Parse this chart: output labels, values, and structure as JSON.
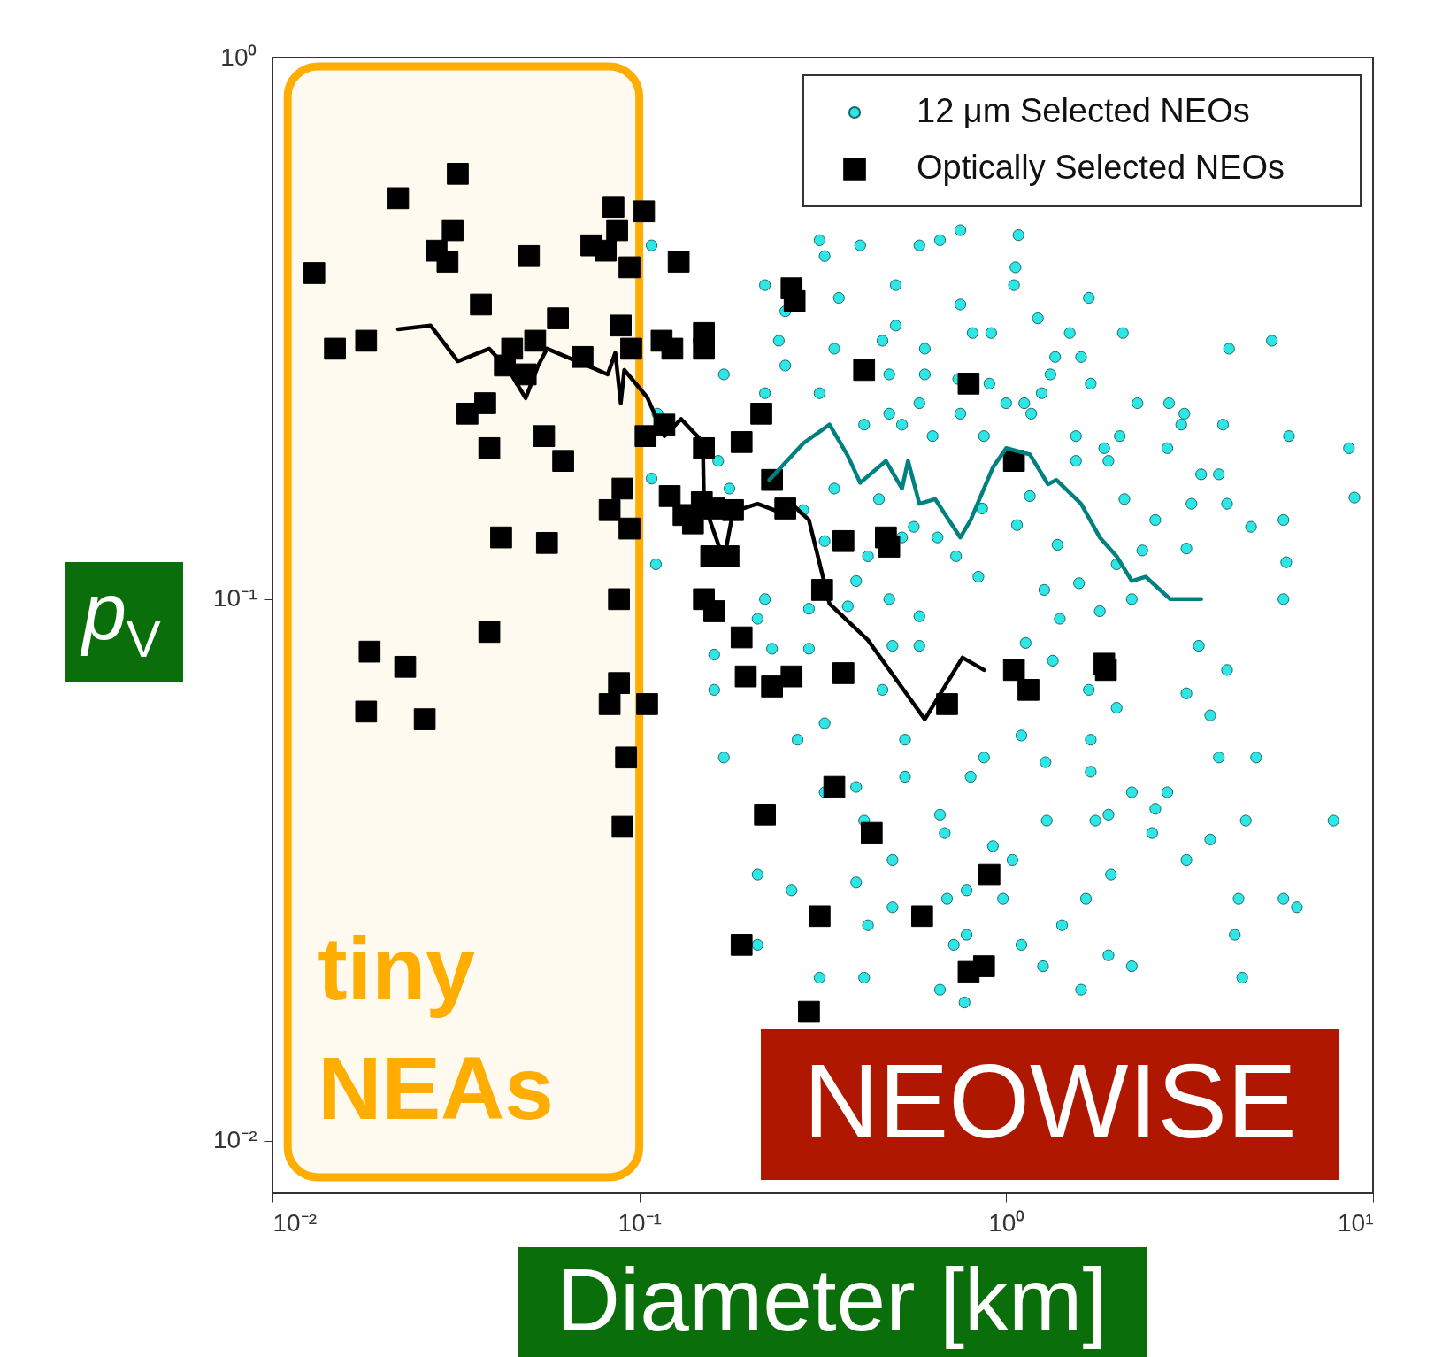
{
  "chart_data": {
    "type": "scatter",
    "xlabel": "Diameter [km]",
    "ylabel": "p$_{V}$",
    "log": "xy",
    "legend": "top right",
    "xlim": [
      0.01,
      10
    ],
    "ylim": [
      0.008,
      1
    ],
    "xticks": [
      {
        "value": 0.01,
        "label": "10⁻²"
      },
      {
        "value": 0.1,
        "label": "10⁻¹"
      },
      {
        "value": 1,
        "label": "10⁰"
      },
      {
        "value": 10,
        "label": "10¹"
      }
    ],
    "yticks": [
      {
        "value": 0.01,
        "label": "10⁻²"
      },
      {
        "value": 0.1,
        "label": "10⁻¹"
      },
      {
        "value": 1,
        "label": "10⁰"
      }
    ],
    "bands": [
      {
        "axis": "x",
        "from": 0.011,
        "to": 0.1,
        "label": "tiny NEAs",
        "color": "#ffad00"
      }
    ],
    "annotations": [
      "NEOWISE"
    ],
    "series": [
      {
        "name": "12 μm Selected NEOs",
        "type": "scatter",
        "marker": "circle",
        "color": "#2ee6e6",
        "x": [
          0.75,
          1.08,
          0.66,
          0.58,
          1.06,
          1.05,
          0.31,
          0.4,
          0.32,
          0.5,
          0.75,
          1.68,
          0.22,
          0.35,
          0.25,
          0.5,
          0.81,
          0.91,
          1.22,
          1.49,
          2.08,
          4.05,
          5.3,
          0.24,
          0.34,
          0.46,
          0.6,
          1.36,
          1.6,
          1.32,
          1.7,
          0.25,
          0.48,
          0.6,
          0.74,
          0.9,
          1.0,
          1.12,
          1.25,
          2.28,
          2.78,
          3.06,
          3.0,
          3.9,
          0.22,
          0.31,
          0.58,
          0.48,
          0.75,
          0.41,
          0.52,
          0.63,
          0.87,
          1.17,
          1.55,
          1.55,
          2.04,
          1.85,
          1.9,
          5.9,
          8.6,
          8.9,
          3.8,
          3.4,
          3.2,
          4.0,
          2.75,
          2.1,
          1.16,
          0.86,
          1.07,
          0.65,
          0.56,
          0.45,
          0.34,
          0.28,
          0.32,
          0.42,
          0.52,
          0.73,
          0.84,
          1.27,
          1.38,
          1.58,
          1.8,
          2.0,
          2.55,
          2.35,
          3.1,
          4.65,
          5.7,
          5.8,
          5.7,
          2.2,
          1.4,
          1.13,
          1.34,
          1.68,
          2.0,
          1.7,
          3.1,
          3.6,
          3.8,
          4.0,
          3.35,
          4.8,
          1.1,
          0.87,
          0.8,
          1.28,
          1.7,
          1.9,
          2.2,
          2.75,
          2.55,
          2.5,
          3.1,
          3.6,
          4.5,
          7.8,
          1.29,
          1.75,
          1.93,
          1.65,
          1.9,
          2.2,
          1.6,
          1.42,
          1.1,
          1.26,
          0.78,
          0.78,
          0.98,
          0.92,
          1.04,
          0.69,
          0.72,
          0.66,
          0.77,
          4.3,
          4.2,
          4.4,
          5.7,
          6.2,
          0.66,
          0.68,
          0.49,
          0.49,
          0.42,
          0.41,
          0.31,
          0.26,
          0.21,
          0.21,
          0.39,
          0.41,
          0.39,
          0.53,
          0.32,
          0.32,
          0.27,
          0.17,
          0.16,
          0.23,
          0.16,
          0.22,
          0.21,
          0.29,
          0.37,
          0.39,
          0.48,
          0.58,
          0.58,
          0.49,
          0.53,
          0.46,
          0.29,
          0.111,
          0.108,
          0.112,
          0.164,
          0.176,
          0.17,
          0.108
        ],
        "values": [
          0.48,
          0.47,
          0.46,
          0.45,
          0.41,
          0.38,
          0.46,
          0.45,
          0.43,
          0.38,
          0.35,
          0.36,
          0.38,
          0.36,
          0.34,
          0.32,
          0.31,
          0.31,
          0.33,
          0.31,
          0.31,
          0.29,
          0.3,
          0.3,
          0.29,
          0.3,
          0.29,
          0.28,
          0.28,
          0.26,
          0.25,
          0.27,
          0.26,
          0.26,
          0.255,
          0.25,
          0.23,
          0.23,
          0.24,
          0.23,
          0.23,
          0.22,
          0.21,
          0.21,
          0.24,
          0.24,
          0.23,
          0.22,
          0.22,
          0.21,
          0.21,
          0.2,
          0.2,
          0.22,
          0.2,
          0.18,
          0.2,
          0.19,
          0.18,
          0.2,
          0.19,
          0.154,
          0.17,
          0.17,
          0.15,
          0.15,
          0.19,
          0.153,
          0.155,
          0.147,
          0.137,
          0.13,
          0.136,
          0.153,
          0.16,
          0.146,
          0.128,
          0.12,
          0.13,
          0.12,
          0.11,
          0.104,
          0.126,
          0.107,
          0.095,
          0.116,
          0.14,
          0.123,
          0.124,
          0.136,
          0.14,
          0.117,
          0.1,
          0.1,
          0.092,
          0.083,
          0.077,
          0.068,
          0.063,
          0.055,
          0.067,
          0.061,
          0.051,
          0.074,
          0.082,
          0.051,
          0.056,
          0.051,
          0.047,
          0.05,
          0.048,
          0.04,
          0.044,
          0.044,
          0.041,
          0.037,
          0.033,
          0.036,
          0.039,
          0.039,
          0.039,
          0.039,
          0.031,
          0.028,
          0.022,
          0.021,
          0.019,
          0.025,
          0.023,
          0.021,
          0.024,
          0.029,
          0.028,
          0.035,
          0.033,
          0.028,
          0.023,
          0.019,
          0.018,
          0.028,
          0.024,
          0.02,
          0.028,
          0.027,
          0.04,
          0.037,
          0.033,
          0.027,
          0.025,
          0.02,
          0.02,
          0.029,
          0.031,
          0.023,
          0.03,
          0.039,
          0.045,
          0.047,
          0.044,
          0.059,
          0.055,
          0.051,
          0.079,
          0.081,
          0.068,
          0.1,
          0.092,
          0.096,
          0.097,
          0.108,
          0.1,
          0.093,
          0.082,
          0.082,
          0.055,
          0.068,
          0.081,
          0.116,
          0.167,
          0.22,
          0.18,
          0.16,
          0.26,
          0.45
        ]
      },
      {
        "name": "Optically Selected NEOs",
        "type": "scatter",
        "marker": "square",
        "color": "#000000",
        "x": [
          0.013,
          0.0148,
          0.018,
          0.022,
          0.032,
          0.031,
          0.028,
          0.03,
          0.05,
          0.037,
          0.06,
          0.045,
          0.043,
          0.049,
          0.052,
          0.07,
          0.038,
          0.034,
          0.039,
          0.055,
          0.062,
          0.042,
          0.056,
          0.039,
          0.0184,
          0.023,
          0.018,
          0.026,
          0.085,
          0.087,
          0.074,
          0.081,
          0.103,
          0.094,
          0.089,
          0.095,
          0.104,
          0.09,
          0.083,
          0.094,
          0.088,
          0.088,
          0.083,
          0.105,
          0.092,
          0.09,
          0.128,
          0.115,
          0.123,
          0.15,
          0.15,
          0.117,
          0.15,
          0.19,
          0.121,
          0.132,
          0.14,
          0.148,
          0.16,
          0.18,
          0.157,
          0.175,
          0.15,
          0.16,
          0.19,
          0.195,
          0.23,
          0.26,
          0.215,
          0.23,
          0.25,
          0.26,
          0.265,
          0.315,
          0.36,
          0.36,
          0.41,
          0.47,
          0.48,
          0.34,
          0.22,
          0.43,
          0.31,
          0.19,
          0.29,
          0.59,
          0.69,
          0.79,
          1.05,
          1.05,
          1.15,
          1.85,
          1.87,
          0.9,
          0.79,
          0.87
        ],
        "values": [
          0.4,
          0.29,
          0.3,
          0.55,
          0.61,
          0.48,
          0.44,
          0.42,
          0.43,
          0.35,
          0.33,
          0.29,
          0.27,
          0.26,
          0.3,
          0.28,
          0.23,
          0.22,
          0.19,
          0.2,
          0.18,
          0.13,
          0.127,
          0.087,
          0.08,
          0.075,
          0.062,
          0.06,
          0.53,
          0.48,
          0.45,
          0.44,
          0.52,
          0.41,
          0.32,
          0.29,
          0.2,
          0.16,
          0.146,
          0.135,
          0.1,
          0.07,
          0.064,
          0.064,
          0.051,
          0.038,
          0.42,
          0.3,
          0.29,
          0.31,
          0.29,
          0.21,
          0.19,
          0.195,
          0.155,
          0.143,
          0.138,
          0.151,
          0.147,
          0.146,
          0.12,
          0.12,
          0.1,
          0.095,
          0.085,
          0.072,
          0.069,
          0.072,
          0.22,
          0.166,
          0.147,
          0.375,
          0.355,
          0.104,
          0.073,
          0.128,
          0.265,
          0.13,
          0.125,
          0.045,
          0.04,
          0.037,
          0.026,
          0.023,
          0.0173,
          0.026,
          0.064,
          0.25,
          0.18,
          0.074,
          0.068,
          0.076,
          0.074,
          0.031,
          0.0205,
          0.021
        ]
      },
      {
        "type": "line",
        "color": "#008080",
        "x": [
          0.226,
          0.28,
          0.33,
          0.37,
          0.4,
          0.47,
          0.52,
          0.54,
          0.58,
          0.64,
          0.75,
          0.8,
          0.92,
          1.0,
          1.16,
          1.3,
          1.37,
          1.6,
          1.8,
          2.0,
          2.2,
          2.4,
          2.8,
          3.4
        ],
        "values": [
          0.166,
          0.194,
          0.21,
          0.184,
          0.164,
          0.18,
          0.16,
          0.18,
          0.15,
          0.153,
          0.13,
          0.14,
          0.175,
          0.19,
          0.185,
          0.163,
          0.166,
          0.15,
          0.13,
          0.12,
          0.108,
          0.11,
          0.1,
          0.1
        ]
      },
      {
        "type": "line",
        "color": "#000000",
        "x": [
          0.022,
          0.027,
          0.032,
          0.039,
          0.044,
          0.049,
          0.053,
          0.056,
          0.072,
          0.082,
          0.086,
          0.089,
          0.091,
          0.105,
          0.117,
          0.13,
          0.149,
          0.15,
          0.17,
          0.18,
          0.21,
          0.24,
          0.26,
          0.29,
          0.33,
          0.42,
          0.6,
          0.76,
          0.87
        ],
        "values": [
          0.315,
          0.32,
          0.275,
          0.29,
          0.265,
          0.235,
          0.27,
          0.29,
          0.27,
          0.26,
          0.285,
          0.23,
          0.265,
          0.236,
          0.2,
          0.215,
          0.195,
          0.15,
          0.118,
          0.145,
          0.15,
          0.145,
          0.15,
          0.14,
          0.098,
          0.084,
          0.06,
          0.078,
          0.074
        ]
      }
    ]
  }
}
